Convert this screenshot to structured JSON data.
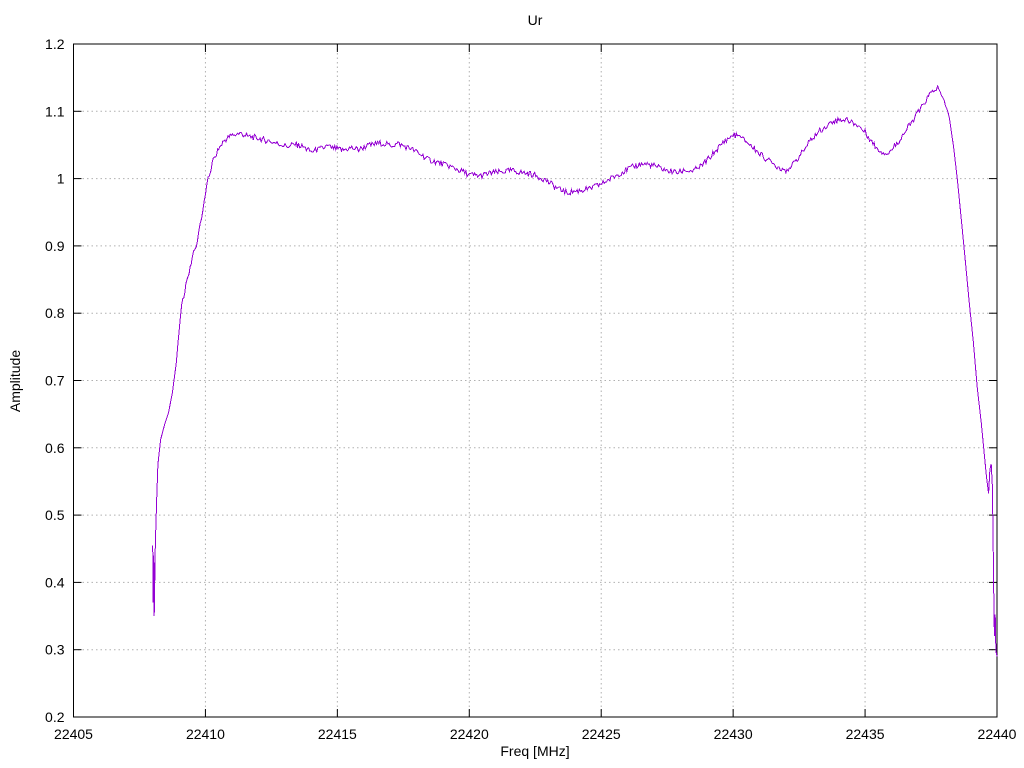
{
  "window": {
    "background": "#ffffff"
  },
  "chart_data": {
    "type": "line",
    "title": "Ur",
    "xlabel": "Freq [MHz]",
    "ylabel": "Amplitude",
    "xlim": [
      22405,
      22440
    ],
    "ylim": [
      0.2,
      1.2
    ],
    "xticks": [
      22405,
      22410,
      22415,
      22420,
      22425,
      22430,
      22435,
      22440
    ],
    "xtick_labels": [
      "22405",
      "22410",
      "22415",
      "22420",
      "22425",
      "22430",
      "22435",
      "22440"
    ],
    "yticks": [
      0.2,
      0.3,
      0.4,
      0.5,
      0.6,
      0.7,
      0.8,
      0.9,
      1.0,
      1.1,
      1.2
    ],
    "ytick_labels": [
      "0.2",
      "0.3",
      "0.4",
      "0.5",
      "0.6",
      "0.7",
      "0.8",
      "0.9",
      "1",
      "1.1",
      "1.2"
    ],
    "grid": true,
    "grid_style": "dotted",
    "legend": "none",
    "series": [
      {
        "name": "Ur",
        "color": "#9400d3",
        "points": [
          [
            22408.0,
            0.455
          ],
          [
            22408.02,
            0.37
          ],
          [
            22408.04,
            0.44
          ],
          [
            22408.06,
            0.35
          ],
          [
            22408.1,
            0.455
          ],
          [
            22408.15,
            0.52
          ],
          [
            22408.2,
            0.575
          ],
          [
            22408.3,
            0.612
          ],
          [
            22408.45,
            0.634
          ],
          [
            22408.6,
            0.652
          ],
          [
            22408.75,
            0.682
          ],
          [
            22408.9,
            0.728
          ],
          [
            22409.0,
            0.772
          ],
          [
            22409.1,
            0.812
          ],
          [
            22409.3,
            0.848
          ],
          [
            22409.5,
            0.882
          ],
          [
            22409.65,
            0.9
          ],
          [
            22409.8,
            0.933
          ],
          [
            22409.95,
            0.963
          ],
          [
            22410.1,
            0.998
          ],
          [
            22410.3,
            1.028
          ],
          [
            22410.5,
            1.044
          ],
          [
            22410.7,
            1.056
          ],
          [
            22410.9,
            1.062
          ],
          [
            22411.1,
            1.066
          ],
          [
            22411.35,
            1.067
          ],
          [
            22411.6,
            1.063
          ],
          [
            22411.9,
            1.061
          ],
          [
            22412.2,
            1.058
          ],
          [
            22412.5,
            1.055
          ],
          [
            22412.8,
            1.051
          ],
          [
            22413.1,
            1.048
          ],
          [
            22413.4,
            1.051
          ],
          [
            22413.7,
            1.047
          ],
          [
            22414.0,
            1.04
          ],
          [
            22414.3,
            1.043
          ],
          [
            22414.6,
            1.048
          ],
          [
            22414.9,
            1.045
          ],
          [
            22415.2,
            1.042
          ],
          [
            22415.5,
            1.046
          ],
          [
            22415.8,
            1.043
          ],
          [
            22416.1,
            1.048
          ],
          [
            22416.4,
            1.051
          ],
          [
            22416.7,
            1.053
          ],
          [
            22417.0,
            1.049
          ],
          [
            22417.3,
            1.052
          ],
          [
            22417.6,
            1.047
          ],
          [
            22417.9,
            1.042
          ],
          [
            22418.2,
            1.035
          ],
          [
            22418.5,
            1.028
          ],
          [
            22418.8,
            1.024
          ],
          [
            22419.1,
            1.021
          ],
          [
            22419.4,
            1.016
          ],
          [
            22419.7,
            1.011
          ],
          [
            22420.0,
            1.006
          ],
          [
            22420.4,
            1.004
          ],
          [
            22420.8,
            1.008
          ],
          [
            22421.2,
            1.01
          ],
          [
            22421.6,
            1.012
          ],
          [
            22422.0,
            1.009
          ],
          [
            22422.4,
            1.006
          ],
          [
            22422.8,
            1.0
          ],
          [
            22423.1,
            0.992
          ],
          [
            22423.4,
            0.984
          ],
          [
            22423.7,
            0.979
          ],
          [
            22424.0,
            0.981
          ],
          [
            22424.3,
            0.983
          ],
          [
            22424.6,
            0.986
          ],
          [
            22424.9,
            0.99
          ],
          [
            22425.2,
            0.996
          ],
          [
            22425.5,
            1.003
          ],
          [
            22425.8,
            1.01
          ],
          [
            22426.1,
            1.016
          ],
          [
            22426.4,
            1.02
          ],
          [
            22426.7,
            1.022
          ],
          [
            22427.0,
            1.019
          ],
          [
            22427.3,
            1.015
          ],
          [
            22427.6,
            1.011
          ],
          [
            22427.9,
            1.009
          ],
          [
            22428.2,
            1.012
          ],
          [
            22428.5,
            1.011
          ],
          [
            22428.8,
            1.019
          ],
          [
            22429.1,
            1.031
          ],
          [
            22429.4,
            1.044
          ],
          [
            22429.7,
            1.057
          ],
          [
            22430.0,
            1.065
          ],
          [
            22430.2,
            1.063
          ],
          [
            22430.5,
            1.055
          ],
          [
            22430.8,
            1.044
          ],
          [
            22431.1,
            1.034
          ],
          [
            22431.4,
            1.025
          ],
          [
            22431.7,
            1.017
          ],
          [
            22432.0,
            1.013
          ],
          [
            22432.3,
            1.022
          ],
          [
            22432.6,
            1.038
          ],
          [
            22432.9,
            1.055
          ],
          [
            22433.2,
            1.068
          ],
          [
            22433.5,
            1.078
          ],
          [
            22433.8,
            1.085
          ],
          [
            22434.1,
            1.088
          ],
          [
            22434.4,
            1.086
          ],
          [
            22434.7,
            1.08
          ],
          [
            22435.0,
            1.069
          ],
          [
            22435.3,
            1.052
          ],
          [
            22435.6,
            1.04
          ],
          [
            22435.9,
            1.038
          ],
          [
            22436.2,
            1.052
          ],
          [
            22436.5,
            1.068
          ],
          [
            22436.8,
            1.086
          ],
          [
            22437.1,
            1.104
          ],
          [
            22437.4,
            1.122
          ],
          [
            22437.6,
            1.132
          ],
          [
            22437.75,
            1.135
          ],
          [
            22437.9,
            1.124
          ],
          [
            22438.05,
            1.11
          ],
          [
            22438.2,
            1.089
          ],
          [
            22438.35,
            1.048
          ],
          [
            22438.5,
            0.998
          ],
          [
            22438.65,
            0.938
          ],
          [
            22438.8,
            0.878
          ],
          [
            22438.95,
            0.815
          ],
          [
            22439.1,
            0.758
          ],
          [
            22439.25,
            0.69
          ],
          [
            22439.4,
            0.638
          ],
          [
            22439.5,
            0.598
          ],
          [
            22439.6,
            0.558
          ],
          [
            22439.68,
            0.532
          ],
          [
            22439.73,
            0.568
          ],
          [
            22439.78,
            0.576
          ],
          [
            22439.82,
            0.545
          ],
          [
            22439.85,
            0.478
          ],
          [
            22439.88,
            0.378
          ],
          [
            22439.9,
            0.32
          ],
          [
            22439.93,
            0.352
          ],
          [
            22439.96,
            0.298
          ],
          [
            22440.0,
            0.29
          ]
        ]
      }
    ]
  },
  "colors": {
    "line": "#9400d3",
    "grid": "#b0b0b0",
    "border": "#000000",
    "text": "#000000",
    "background": "#ffffff"
  }
}
